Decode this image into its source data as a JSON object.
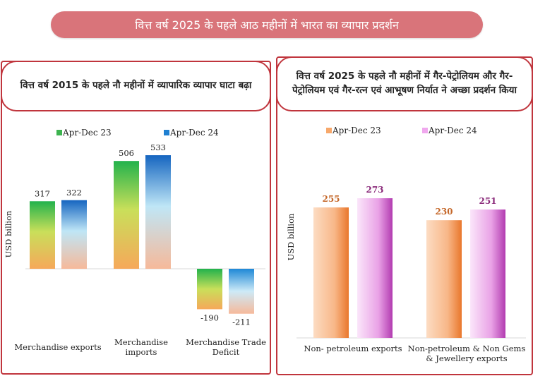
{
  "banner": {
    "title": "वित्त वर्ष 2025 के पहले आठ महीनों में भारत का व्यापार प्रदर्शन"
  },
  "colors": {
    "banner": "#d9747a",
    "panel_border": "#c0353d"
  },
  "chart_data": [
    {
      "type": "bar",
      "title": "वित्त वर्ष 2015 के पहले नौ महीनों में व्यापारिक व्यापार घाटा बढ़ा",
      "ylabel": "USD billion",
      "xlabel": "",
      "categories": [
        "Merchandise exports",
        "Merchandise imports",
        "Merchandise Trade Deficit"
      ],
      "series": [
        {
          "name": "Apr-Dec 23",
          "values": [
            317,
            506,
            -190
          ]
        },
        {
          "name": "Apr-Dec 24",
          "values": [
            322,
            533,
            -211
          ]
        }
      ],
      "ylim": [
        -230,
        560
      ],
      "legend": "top-center",
      "grid": false
    },
    {
      "type": "bar",
      "title": "वित्त वर्ष 2025 के पहले नौ महीनों में गैर-पेट्रोलियम और गैर-पेट्रोलियम एवं गैर-रत्न एवं आभूषण निर्यात ने अच्छा प्रदर्शन किया",
      "ylabel": "USD billion",
      "xlabel": "",
      "categories": [
        "Non- petroleum exports",
        "Non-petroleum & Non Gems & Jewellery exports"
      ],
      "series": [
        {
          "name": "Apr-Dec 23",
          "values": [
            255,
            230
          ]
        },
        {
          "name": "Apr-Dec 24",
          "values": [
            273,
            251
          ]
        }
      ],
      "ylim": [
        0,
        290
      ],
      "legend": "top-center",
      "grid": false
    }
  ]
}
